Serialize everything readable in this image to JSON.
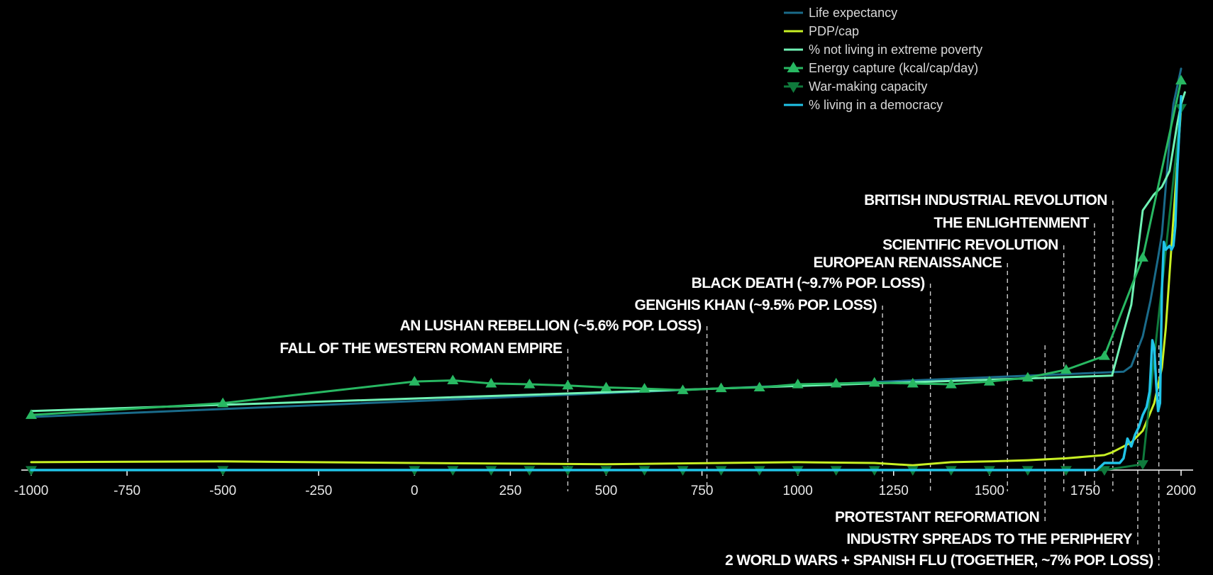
{
  "chart_data": {
    "type": "line",
    "title": "",
    "xlabel": "",
    "ylabel": "",
    "xlim": [
      -1000,
      2010
    ],
    "ylim": [
      0,
      1
    ],
    "x_ticks": [
      "-1000",
      "-750",
      "-500",
      "-250",
      "0",
      "250",
      "500",
      "750",
      "1000",
      "1250",
      "1500",
      "1750",
      "2000"
    ],
    "grid": false,
    "legend_position": "top-right",
    "series": [
      {
        "name": "Life expectancy",
        "color": "#1a6b8a",
        "marker": "none",
        "x": [
          -1000,
          1850,
          1870,
          1900,
          1920,
          1940,
          1950,
          1960,
          1970,
          1980,
          2000
        ],
        "y": [
          0.135,
          0.25,
          0.264,
          0.34,
          0.43,
          0.54,
          0.6,
          0.72,
          0.84,
          0.93,
          1.02
        ]
      },
      {
        "name": "PDP/cap",
        "color": "#c8f024",
        "marker": "none",
        "x": [
          -1000,
          -500,
          0,
          500,
          1000,
          1200,
          1300,
          1400,
          1500,
          1600,
          1700,
          1800,
          1820,
          1850,
          1870,
          1900,
          1913,
          1930,
          1950,
          1960,
          1970,
          1980,
          1990,
          2000
        ],
        "y": [
          0.02,
          0.022,
          0.018,
          0.015,
          0.02,
          0.018,
          0.012,
          0.02,
          0.022,
          0.025,
          0.03,
          0.038,
          0.045,
          0.06,
          0.07,
          0.1,
          0.13,
          0.17,
          0.26,
          0.36,
          0.5,
          0.64,
          0.78,
          0.92
        ]
      },
      {
        "name": "% not living in extreme poverty",
        "color": "#6ff2b4",
        "marker": "none",
        "x": [
          -1000,
          1820,
          1850,
          1870,
          1900,
          1929,
          1950,
          1970,
          1980,
          1990,
          2000,
          2010
        ],
        "y": [
          0.15,
          0.24,
          0.35,
          0.42,
          0.66,
          0.7,
          0.72,
          0.76,
          0.82,
          0.88,
          0.93,
          0.96
        ]
      },
      {
        "name": "Energy capture (kcal/cap/day)",
        "color": "#28b862",
        "marker": "triangle-up",
        "x": [
          -1000,
          -500,
          0,
          100,
          200,
          300,
          400,
          500,
          600,
          700,
          800,
          900,
          1000,
          1100,
          1200,
          1300,
          1400,
          1500,
          1600,
          1700,
          1800,
          1900,
          2000
        ],
        "y": [
          0.14,
          0.17,
          0.225,
          0.228,
          0.22,
          0.218,
          0.215,
          0.21,
          0.207,
          0.203,
          0.208,
          0.21,
          0.218,
          0.22,
          0.222,
          0.22,
          0.218,
          0.225,
          0.235,
          0.255,
          0.29,
          0.54,
          0.99
        ]
      },
      {
        "name": "War-making capacity",
        "color": "#0f7a3c",
        "marker": "triangle-down",
        "x": [
          -1000,
          -500,
          0,
          100,
          200,
          300,
          400,
          500,
          600,
          700,
          800,
          900,
          1000,
          1100,
          1200,
          1300,
          1400,
          1500,
          1600,
          1700,
          1800,
          1900,
          2000
        ],
        "y": [
          0,
          0,
          0,
          0,
          0,
          0,
          0,
          0,
          0,
          0,
          0,
          0,
          0,
          0,
          0,
          0,
          0,
          0,
          0,
          0,
          0,
          0.015,
          0.92
        ]
      },
      {
        "name": "% living in a democracy",
        "color": "#20c4e8",
        "marker": "none",
        "x": [
          -1000,
          1780,
          1800,
          1840,
          1850,
          1860,
          1870,
          1880,
          1890,
          1900,
          1910,
          1918,
          1925,
          1930,
          1935,
          1940,
          1945,
          1950,
          1955,
          1960,
          1970,
          1975,
          1980,
          1985,
          1990,
          2000
        ],
        "y": [
          0,
          0,
          0.018,
          0.018,
          0.03,
          0.08,
          0.06,
          0.09,
          0.11,
          0.14,
          0.16,
          0.2,
          0.33,
          0.31,
          0.22,
          0.15,
          0.17,
          0.46,
          0.58,
          0.56,
          0.57,
          0.56,
          0.57,
          0.62,
          0.76,
          0.95
        ]
      }
    ],
    "annotations": [
      {
        "label": "FALL OF THE WESTERN ROMAN EMPIRE",
        "x": 400,
        "text_side": "above"
      },
      {
        "label": "AN LUSHAN REBELLION (~5.6% POP. LOSS)",
        "x": 763,
        "text_side": "above"
      },
      {
        "label": "GENGHIS KHAN (~9.5% POP. LOSS)",
        "x": 1221,
        "text_side": "above"
      },
      {
        "label": "BLACK DEATH (~9.7% POP. LOSS)",
        "x": 1346,
        "text_side": "above"
      },
      {
        "label": "EUROPEAN RENAISSANCE",
        "x": 1547,
        "text_side": "above"
      },
      {
        "label": "SCIENTIFIC REVOLUTION",
        "x": 1694,
        "text_side": "above"
      },
      {
        "label": "THE ENLIGHTENMENT",
        "x": 1774,
        "text_side": "above"
      },
      {
        "label": "BRITISH INDUSTRIAL REVOLUTION",
        "x": 1822,
        "text_side": "above"
      },
      {
        "label": "PROTESTANT REFORMATION",
        "x": 1645,
        "text_side": "below"
      },
      {
        "label": "INDUSTRY SPREADS TO THE PERIPHERY",
        "x": 1887,
        "text_side": "below"
      },
      {
        "label": "2 WORLD WARS + SPANISH FLU (TOGETHER, ~7% POP. LOSS)",
        "x": 1942,
        "text_side": "below"
      }
    ]
  }
}
